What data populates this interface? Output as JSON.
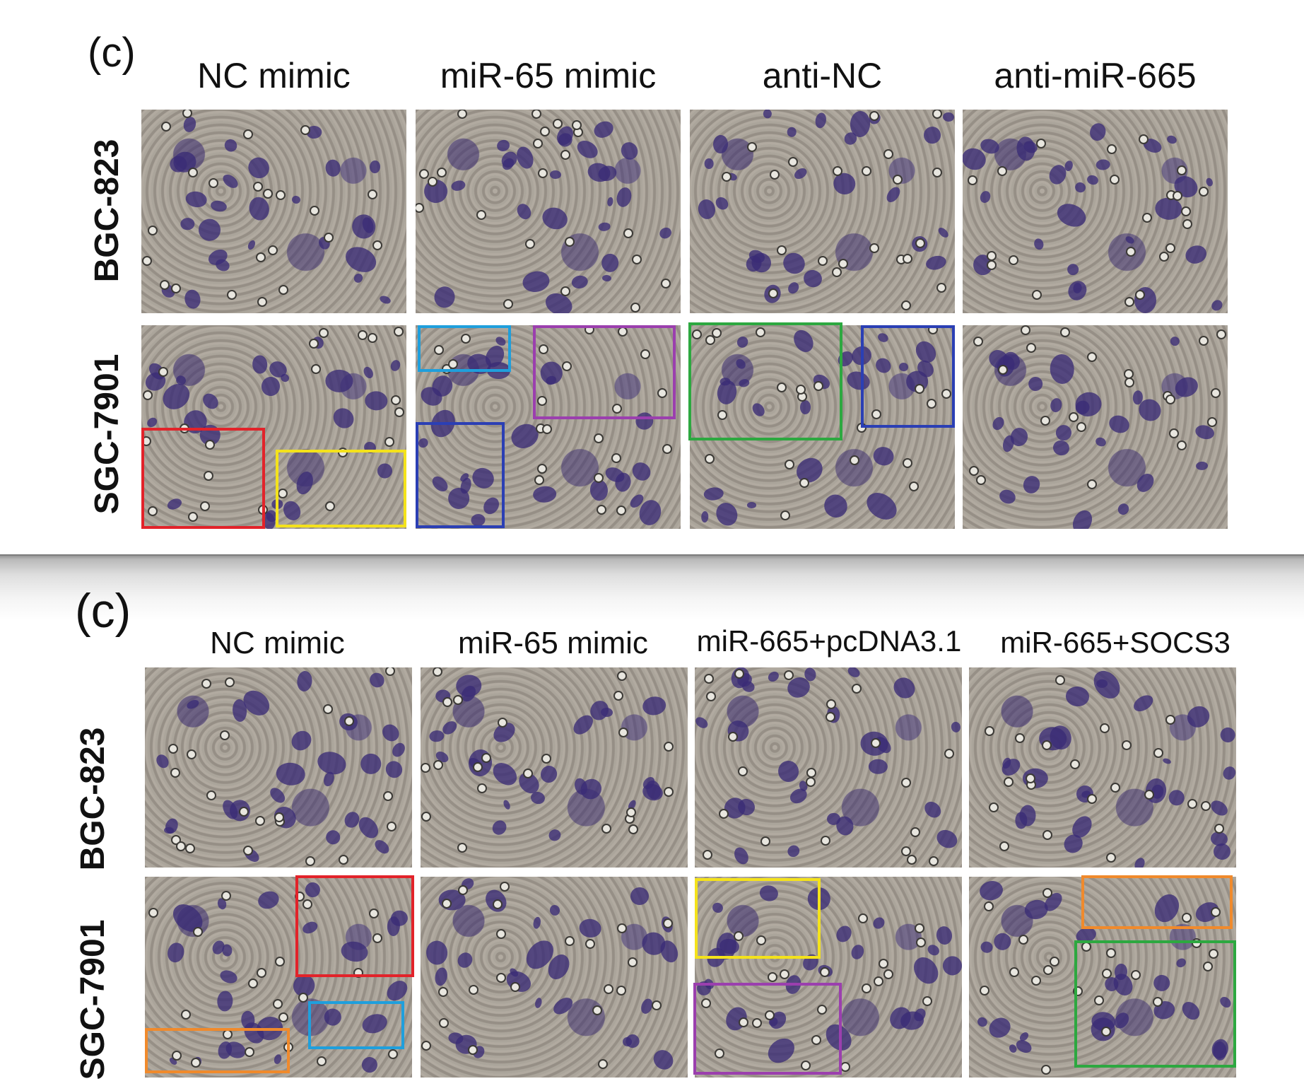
{
  "figure_top": {
    "label": "(c)",
    "columns": [
      "NC mimic",
      "miR-65 mimic",
      "anti-NC",
      "anti-miR-665"
    ],
    "rows": [
      "BGC-823",
      "SGC-7901"
    ]
  },
  "figure_bottom": {
    "label": "(c)",
    "columns": [
      "NC mimic",
      "miR-65 mimic",
      "miR-665+pcDNA3.1",
      "miR-665+SOCS3"
    ],
    "rows": [
      "BGC-823",
      "SGC-7901"
    ]
  },
  "colors": {
    "red": "#e2232a",
    "yellow": "#f4e21b",
    "light_blue": "#1f9fdc",
    "purple": "#9b3fae",
    "dark_blue": "#2b3fb4",
    "green": "#2da840",
    "orange": "#f08a2c"
  },
  "highlight_boxes": {
    "top_sgc7901": [
      {
        "panel": "NC mimic",
        "color": "red"
      },
      {
        "panel": "NC mimic",
        "color": "yellow"
      },
      {
        "panel": "miR-65 mimic",
        "color": "light_blue"
      },
      {
        "panel": "miR-65 mimic",
        "color": "purple"
      },
      {
        "panel": "miR-65 mimic",
        "color": "dark_blue"
      },
      {
        "panel": "anti-NC",
        "color": "green"
      },
      {
        "panel": "anti-NC",
        "color": "dark_blue"
      }
    ],
    "bottom_sgc7901": [
      {
        "panel": "NC mimic",
        "color": "red"
      },
      {
        "panel": "NC mimic",
        "color": "light_blue"
      },
      {
        "panel": "NC mimic",
        "color": "orange"
      },
      {
        "panel": "miR-665+pcDNA3.1",
        "color": "yellow"
      },
      {
        "panel": "miR-665+pcDNA3.1",
        "color": "purple"
      },
      {
        "panel": "miR-665+SOCS3",
        "color": "orange"
      },
      {
        "panel": "miR-665+SOCS3",
        "color": "green"
      }
    ]
  }
}
